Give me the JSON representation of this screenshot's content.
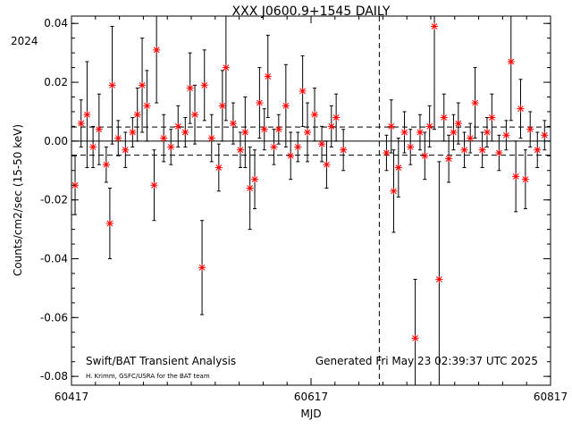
{
  "chart_data": {
    "type": "scatter",
    "title": "XXX J0600.9+1545 DAILY",
    "xlabel": "MJD",
    "ylabel": "Counts/cm2/sec (15-50 keV)",
    "year_label": "2024",
    "xlim": [
      60417,
      60817
    ],
    "ylim": [
      -0.083,
      0.0425
    ],
    "x_ticks": [
      60417,
      60617,
      60817
    ],
    "x_tick_labels": [
      "60417",
      "60617",
      "60817"
    ],
    "y_ticks": [
      -0.08,
      -0.06,
      -0.04,
      -0.02,
      0.0,
      0.02,
      0.04
    ],
    "y_tick_labels": [
      "-0.08",
      "-0.06",
      "-0.04",
      "-0.02",
      "0.00",
      "0.02",
      "0.04"
    ],
    "zero_line": 0.0,
    "sigma_lines": [
      0.0048,
      -0.0048
    ],
    "vertical_marker_mjd": 60674,
    "grid": false,
    "legend": "none",
    "marker_color": "#ff0000",
    "errorbar_color": "#000000",
    "footer_left": "Swift/BAT Transient Analysis",
    "footer_credit": "H. Krimm, GSFC/USRA for the BAT team",
    "footer_right": "Generated Fri May 23 02:39:37 UTC 2025",
    "series": [
      {
        "points": [
          {
            "x": 60420,
            "y": -0.015,
            "err": 0.01
          },
          {
            "x": 60425,
            "y": 0.006,
            "err": 0.008
          },
          {
            "x": 60430,
            "y": 0.009,
            "err": 0.018
          },
          {
            "x": 60435,
            "y": -0.002,
            "err": 0.007
          },
          {
            "x": 60440,
            "y": 0.004,
            "err": 0.012
          },
          {
            "x": 60446,
            "y": -0.008,
            "err": 0.006
          },
          {
            "x": 60449,
            "y": -0.028,
            "err": 0.012
          },
          {
            "x": 60451,
            "y": 0.019,
            "err": 0.02
          },
          {
            "x": 60456,
            "y": 0.001,
            "err": 0.006
          },
          {
            "x": 60462,
            "y": -0.003,
            "err": 0.006
          },
          {
            "x": 60468,
            "y": 0.003,
            "err": 0.005
          },
          {
            "x": 60472,
            "y": 0.009,
            "err": 0.009
          },
          {
            "x": 60476,
            "y": 0.019,
            "err": 0.016
          },
          {
            "x": 60480,
            "y": 0.012,
            "err": 0.012
          },
          {
            "x": 60486,
            "y": -0.015,
            "err": 0.012
          },
          {
            "x": 60488,
            "y": 0.031,
            "err": 0.018
          },
          {
            "x": 60494,
            "y": 0.001,
            "err": 0.008
          },
          {
            "x": 60500,
            "y": -0.002,
            "err": 0.006
          },
          {
            "x": 60506,
            "y": 0.005,
            "err": 0.007
          },
          {
            "x": 60512,
            "y": 0.003,
            "err": 0.005
          },
          {
            "x": 60516,
            "y": 0.018,
            "err": 0.012
          },
          {
            "x": 60520,
            "y": 0.009,
            "err": 0.01
          },
          {
            "x": 60526,
            "y": -0.043,
            "err": 0.016
          },
          {
            "x": 60528,
            "y": 0.019,
            "err": 0.012
          },
          {
            "x": 60534,
            "y": 0.001,
            "err": 0.008
          },
          {
            "x": 60540,
            "y": -0.009,
            "err": 0.008
          },
          {
            "x": 60543,
            "y": 0.012,
            "err": 0.012
          },
          {
            "x": 60546,
            "y": 0.025,
            "err": 0.018
          },
          {
            "x": 60552,
            "y": 0.006,
            "err": 0.007
          },
          {
            "x": 60558,
            "y": -0.003,
            "err": 0.006
          },
          {
            "x": 60562,
            "y": 0.003,
            "err": 0.012
          },
          {
            "x": 60566,
            "y": -0.016,
            "err": 0.014
          },
          {
            "x": 60570,
            "y": -0.013,
            "err": 0.01
          },
          {
            "x": 60574,
            "y": 0.013,
            "err": 0.012
          },
          {
            "x": 60578,
            "y": 0.004,
            "err": 0.007
          },
          {
            "x": 60581,
            "y": 0.022,
            "err": 0.014
          },
          {
            "x": 60586,
            "y": -0.002,
            "err": 0.006
          },
          {
            "x": 60590,
            "y": 0.004,
            "err": 0.005
          },
          {
            "x": 60596,
            "y": 0.012,
            "err": 0.014
          },
          {
            "x": 60600,
            "y": -0.005,
            "err": 0.008
          },
          {
            "x": 60606,
            "y": -0.002,
            "err": 0.005
          },
          {
            "x": 60610,
            "y": 0.017,
            "err": 0.012
          },
          {
            "x": 60614,
            "y": 0.003,
            "err": 0.01
          },
          {
            "x": 60620,
            "y": 0.009,
            "err": 0.009
          },
          {
            "x": 60626,
            "y": -0.001,
            "err": 0.006
          },
          {
            "x": 60630,
            "y": -0.008,
            "err": 0.008
          },
          {
            "x": 60634,
            "y": 0.005,
            "err": 0.007
          },
          {
            "x": 60638,
            "y": 0.008,
            "err": 0.008
          },
          {
            "x": 60644,
            "y": -0.003,
            "err": 0.007
          },
          {
            "x": 60680,
            "y": -0.004,
            "err": 0.006
          },
          {
            "x": 60684,
            "y": 0.005,
            "err": 0.009
          },
          {
            "x": 60686,
            "y": -0.017,
            "err": 0.014
          },
          {
            "x": 60690,
            "y": -0.009,
            "err": 0.01
          },
          {
            "x": 60695,
            "y": 0.003,
            "err": 0.007
          },
          {
            "x": 60700,
            "y": -0.002,
            "err": 0.006
          },
          {
            "x": 60704,
            "y": -0.067,
            "err": 0.02
          },
          {
            "x": 60708,
            "y": 0.003,
            "err": 0.006
          },
          {
            "x": 60712,
            "y": -0.005,
            "err": 0.008
          },
          {
            "x": 60716,
            "y": 0.005,
            "err": 0.007
          },
          {
            "x": 60720,
            "y": 0.039,
            "err": 0.035
          },
          {
            "x": 60724,
            "y": -0.047,
            "err": 0.04
          },
          {
            "x": 60728,
            "y": 0.008,
            "err": 0.008
          },
          {
            "x": 60732,
            "y": -0.006,
            "err": 0.008
          },
          {
            "x": 60736,
            "y": 0.003,
            "err": 0.006
          },
          {
            "x": 60740,
            "y": 0.006,
            "err": 0.007
          },
          {
            "x": 60745,
            "y": -0.003,
            "err": 0.006
          },
          {
            "x": 60750,
            "y": 0.001,
            "err": 0.005
          },
          {
            "x": 60754,
            "y": 0.013,
            "err": 0.012
          },
          {
            "x": 60760,
            "y": -0.003,
            "err": 0.006
          },
          {
            "x": 60764,
            "y": 0.003,
            "err": 0.005
          },
          {
            "x": 60768,
            "y": 0.008,
            "err": 0.008
          },
          {
            "x": 60774,
            "y": -0.004,
            "err": 0.006
          },
          {
            "x": 60780,
            "y": 0.002,
            "err": 0.005
          },
          {
            "x": 60784,
            "y": 0.027,
            "err": 0.02
          },
          {
            "x": 60788,
            "y": -0.012,
            "err": 0.012
          },
          {
            "x": 60792,
            "y": 0.011,
            "err": 0.01
          },
          {
            "x": 60796,
            "y": -0.013,
            "err": 0.01
          },
          {
            "x": 60800,
            "y": 0.004,
            "err": 0.006
          },
          {
            "x": 60806,
            "y": -0.003,
            "err": 0.006
          },
          {
            "x": 60812,
            "y": 0.002,
            "err": 0.005
          }
        ]
      }
    ]
  }
}
